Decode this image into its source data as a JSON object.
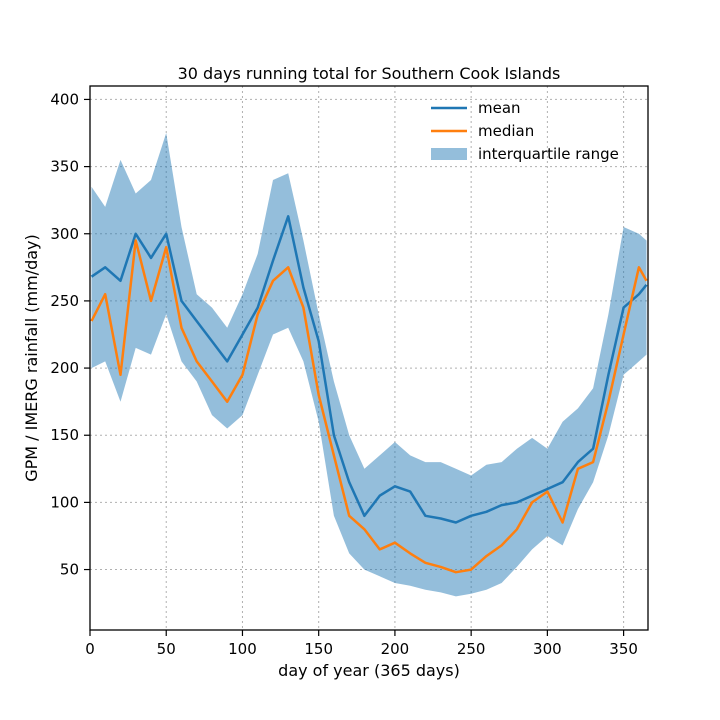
{
  "chart_data": {
    "type": "line",
    "title": "30 days running total for Southern Cook Islands",
    "xlabel": "day of year (365 days)",
    "ylabel": "GPM / IMERG rainfall (mm/day)",
    "xlim": [
      0,
      366
    ],
    "ylim": [
      5,
      410
    ],
    "xticks": [
      0,
      50,
      100,
      150,
      200,
      250,
      300,
      350
    ],
    "yticks": [
      50,
      100,
      150,
      200,
      250,
      300,
      350,
      400
    ],
    "grid": true,
    "legend_position": "upper-right",
    "legend": [
      {
        "label": "mean",
        "kind": "line"
      },
      {
        "label": "median",
        "kind": "line"
      },
      {
        "label": "interquartile range",
        "kind": "patch"
      }
    ],
    "colors": {
      "mean": "#1f77b4",
      "median": "#ff7f0e",
      "band": "#1f77b4",
      "band_opacity": 0.48
    },
    "x": [
      1,
      10,
      20,
      30,
      40,
      50,
      60,
      70,
      80,
      90,
      100,
      110,
      120,
      130,
      140,
      150,
      160,
      170,
      180,
      190,
      200,
      210,
      220,
      230,
      240,
      250,
      260,
      270,
      280,
      290,
      300,
      310,
      320,
      330,
      340,
      350,
      360,
      365
    ],
    "series": [
      {
        "name": "mean",
        "values": [
          268,
          275,
          265,
          300,
          282,
          300,
          250,
          235,
          220,
          205,
          225,
          245,
          280,
          313,
          260,
          220,
          150,
          115,
          90,
          105,
          112,
          108,
          90,
          88,
          85,
          90,
          93,
          98,
          100,
          105,
          110,
          115,
          130,
          140,
          195,
          245,
          255,
          262
        ]
      },
      {
        "name": "median",
        "values": [
          235,
          255,
          195,
          295,
          250,
          290,
          230,
          205,
          190,
          175,
          195,
          240,
          265,
          275,
          245,
          180,
          135,
          90,
          80,
          65,
          70,
          62,
          55,
          52,
          48,
          50,
          60,
          68,
          80,
          100,
          108,
          85,
          125,
          130,
          175,
          225,
          275,
          265
        ]
      },
      {
        "name": "q1",
        "values": [
          200,
          205,
          175,
          215,
          210,
          240,
          205,
          190,
          165,
          155,
          165,
          195,
          225,
          230,
          205,
          160,
          90,
          62,
          50,
          45,
          40,
          38,
          35,
          33,
          30,
          32,
          35,
          40,
          52,
          65,
          75,
          68,
          95,
          115,
          150,
          195,
          205,
          210
        ]
      },
      {
        "name": "q3",
        "values": [
          335,
          320,
          355,
          330,
          340,
          375,
          305,
          255,
          245,
          230,
          255,
          285,
          340,
          345,
          295,
          240,
          190,
          150,
          125,
          135,
          145,
          135,
          130,
          130,
          125,
          120,
          128,
          130,
          140,
          148,
          140,
          160,
          170,
          185,
          240,
          305,
          300,
          295
        ]
      }
    ]
  }
}
